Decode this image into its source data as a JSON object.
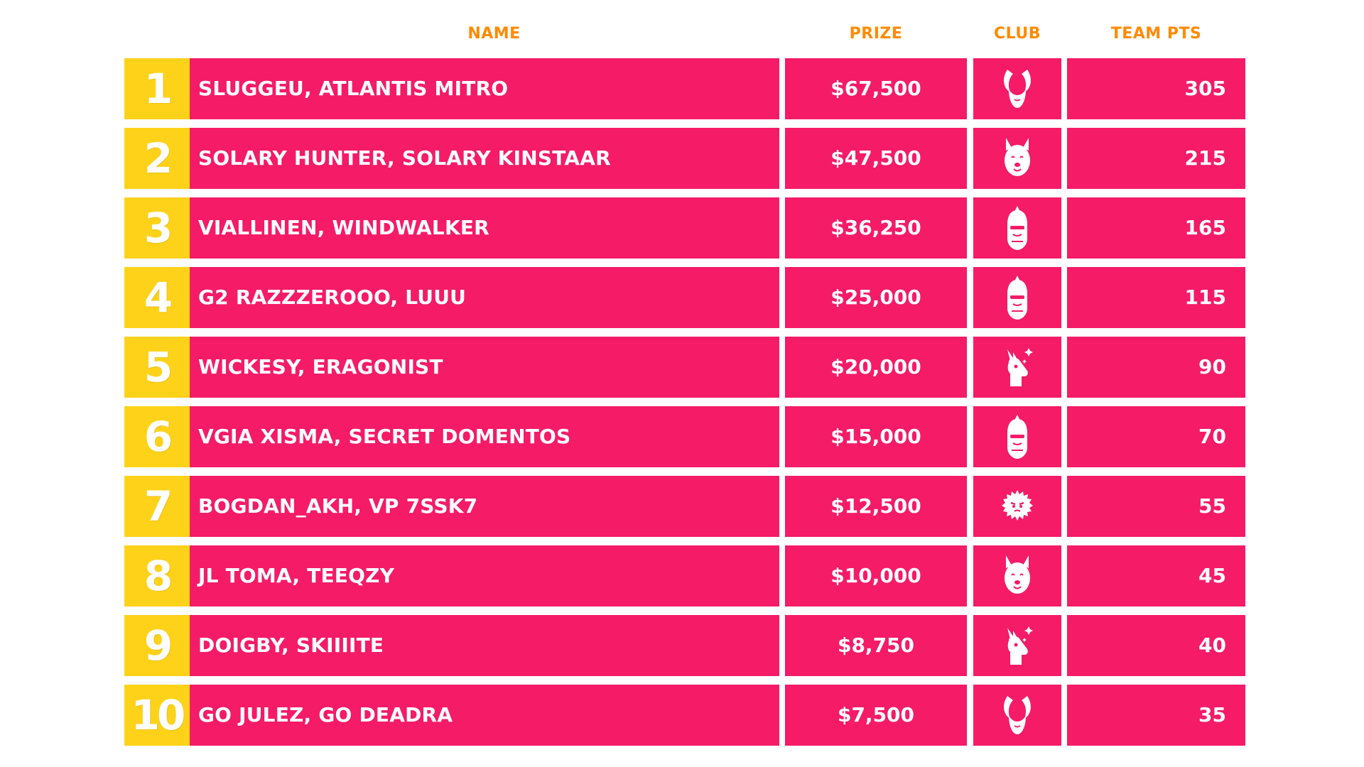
{
  "headers": {
    "name": "NAME",
    "prize": "PRIZE",
    "club": "CLUB",
    "team_pts": "TEAM PTS"
  },
  "colors": {
    "rank_bg": "#ffd21a",
    "row_bg": "#f51b67",
    "header_text": "#ff8a00",
    "text": "#ffffff",
    "page_bg": "#ffffff"
  },
  "rows": [
    {
      "rank": "1",
      "name": "SLUGGEU, ATLANTIS MITRO",
      "prize": "$67,500",
      "club_icon": "horned-hood-icon",
      "team_pts": "305"
    },
    {
      "rank": "2",
      "name": "SOLARY HUNTER, SOLARY KINSTAAR",
      "prize": "$47,500",
      "club_icon": "bear-head-icon",
      "team_pts": "215"
    },
    {
      "rank": "3",
      "name": "VIALLINEN, WINDWALKER",
      "prize": "$36,250",
      "club_icon": "knight-helmet-icon",
      "team_pts": "165"
    },
    {
      "rank": "4",
      "name": "G2 RAZZZEROOO, LUUU",
      "prize": "$25,000",
      "club_icon": "knight-helmet-icon",
      "team_pts": "115"
    },
    {
      "rank": "5",
      "name": "WICKESY, ERAGONIST",
      "prize": "$20,000",
      "club_icon": "llama-head-icon",
      "team_pts": "90"
    },
    {
      "rank": "6",
      "name": "VGIA XISMA, SECRET DOMENTOS",
      "prize": "$15,000",
      "club_icon": "knight-helmet-icon",
      "team_pts": "70"
    },
    {
      "rank": "7",
      "name": "BOGDAN_AKH, VP 7SSK7",
      "prize": "$12,500",
      "club_icon": "fuzzy-ball-icon",
      "team_pts": "55"
    },
    {
      "rank": "8",
      "name": "JL TOMA, TEEQZY",
      "prize": "$10,000",
      "club_icon": "bear-head-icon",
      "team_pts": "45"
    },
    {
      "rank": "9",
      "name": "DOIGBY, SKIIIITE",
      "prize": "$8,750",
      "club_icon": "llama-head-icon",
      "team_pts": "40"
    },
    {
      "rank": "10",
      "name": "GO JULEZ, GO DEADRA",
      "prize": "$7,500",
      "club_icon": "horned-hood-icon",
      "team_pts": "35"
    }
  ]
}
